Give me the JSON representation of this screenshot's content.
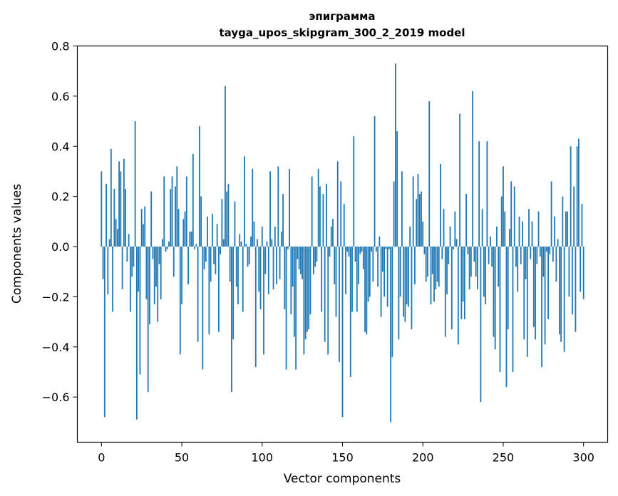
{
  "chart_data": {
    "type": "bar",
    "title": "эпиграмма",
    "subtitle": "tayga_upos_skipgram_300_2_2019 model",
    "xlabel": "Vector components",
    "ylabel": "Components values",
    "xlim": [
      -15,
      315
    ],
    "ylim": [
      -0.78,
      0.8
    ],
    "xticks": [
      0,
      50,
      100,
      150,
      200,
      250,
      300
    ],
    "xtick_labels": [
      "0",
      "50",
      "100",
      "150",
      "200",
      "250",
      "300"
    ],
    "yticks": [
      -0.6,
      -0.4,
      -0.2,
      0.0,
      0.2,
      0.4,
      0.6,
      0.8
    ],
    "ytick_labels": [
      "−0.6",
      "−0.4",
      "−0.2",
      "0.0",
      "0.2",
      "0.4",
      "0.6",
      "0.8"
    ],
    "grid": false,
    "bar_color": "#1f77b4",
    "values": [
      0.3,
      -0.13,
      -0.68,
      0.25,
      -0.19,
      0.03,
      0.39,
      -0.26,
      0.23,
      0.11,
      0.07,
      0.34,
      0.3,
      -0.17,
      0.35,
      0.23,
      -0.06,
      0.05,
      -0.26,
      -0.12,
      -0.08,
      0.5,
      -0.69,
      -0.18,
      -0.51,
      0.15,
      0.09,
      0.16,
      -0.21,
      -0.58,
      -0.31,
      0.22,
      -0.05,
      -0.23,
      -0.16,
      -0.3,
      -0.07,
      -0.21,
      0.03,
      0.28,
      -0.02,
      -0.01,
      0.02,
      0.23,
      0.28,
      -0.12,
      0.24,
      0.32,
      0.15,
      -0.43,
      -0.23,
      0.11,
      0.14,
      0.28,
      -0.15,
      0.06,
      0.06,
      0.37,
      -0.01,
      0.01,
      -0.38,
      0.48,
      0.2,
      -0.49,
      -0.09,
      -0.06,
      0.12,
      -0.35,
      -0.14,
      0.13,
      -0.07,
      -0.11,
      0.09,
      -0.34,
      -0.03,
      0.19,
      0.03,
      0.64,
      0.22,
      0.25,
      -0.14,
      -0.58,
      -0.37,
      0.18,
      -0.16,
      -0.23,
      0.05,
      0.02,
      -0.26,
      0.36,
      0.01,
      -0.08,
      -0.07,
      0.04,
      0.31,
      0.1,
      -0.48,
      0.03,
      -0.18,
      -0.25,
      0.08,
      -0.43,
      -0.11,
      0.02,
      -0.19,
      0.3,
      0.03,
      -0.17,
      0.08,
      -0.15,
      0.32,
      -0.13,
      0.06,
      0.21,
      -0.25,
      -0.49,
      -0.01,
      0.31,
      -0.27,
      -0.16,
      -0.36,
      -0.49,
      -0.05,
      -0.09,
      -0.11,
      -0.13,
      -0.43,
      -0.37,
      -0.34,
      -0.33,
      -0.27,
      0.28,
      -0.11,
      -0.08,
      -0.06,
      0.31,
      0.24,
      -0.26,
      0.21,
      -0.38,
      0.25,
      -0.43,
      -0.04,
      0.08,
      0.11,
      -0.15,
      -0.28,
      0.34,
      -0.46,
      0.26,
      -0.68,
      0.17,
      -0.19,
      -0.02,
      -0.04,
      -0.52,
      -0.26,
      0.44,
      -0.06,
      -0.26,
      -0.15,
      -0.03,
      -0.02,
      -0.09,
      -0.34,
      -0.35,
      -0.22,
      -0.2,
      -0.02,
      -0.14,
      0.52,
      -0.02,
      -0.16,
      0.04,
      -0.28,
      -0.1,
      -0.2,
      -0.01,
      -0.24,
      -0.01,
      -0.7,
      -0.44,
      0.26,
      0.73,
      0.46,
      -0.37,
      -0.2,
      0.3,
      -0.28,
      -0.3,
      -0.23,
      -0.24,
      0.08,
      -0.33,
      0.28,
      -0.15,
      0.19,
      0.29,
      0.21,
      0.22,
      0.1,
      -0.03,
      -0.14,
      -0.12,
      0.58,
      -0.23,
      -0.11,
      -0.22,
      -0.17,
      -0.14,
      -0.16,
      0.33,
      -0.05,
      0.15,
      -0.36,
      -0.19,
      -0.07,
      0.08,
      -0.33,
      -0.01,
      0.14,
      0.03,
      -0.39,
      0.53,
      -0.29,
      -0.22,
      -0.29,
      0.21,
      -0.03,
      -0.17,
      -0.12,
      0.62,
      -0.06,
      -0.12,
      -0.17,
      0.42,
      -0.62,
      0.15,
      -0.2,
      -0.23,
      0.42,
      -0.07,
      0.04,
      -0.08,
      -0.36,
      -0.41,
      0.08,
      -0.16,
      -0.5,
      0.2,
      0.32,
      0.14,
      -0.56,
      -0.33,
      0.07,
      0.26,
      -0.5,
      0.24,
      -0.08,
      -0.18,
      0.12,
      -0.07,
      0.1,
      -0.37,
      -0.13,
      -0.44,
      0.15,
      -0.05,
      0.1,
      -0.32,
      -0.37,
      -0.07,
      0.14,
      -0.04,
      -0.48,
      -0.12,
      -0.39,
      -0.02,
      -0.29,
      -0.03,
      0.26,
      -0.06,
      0.12,
      -0.14,
      0.03,
      -0.35,
      -0.38,
      0.2,
      -0.42,
      0.14,
      0.14,
      -0.2,
      0.4,
      -0.27,
      0.24,
      -0.34,
      0.4,
      0.43,
      -0.18,
      0.17,
      -0.21
    ]
  }
}
